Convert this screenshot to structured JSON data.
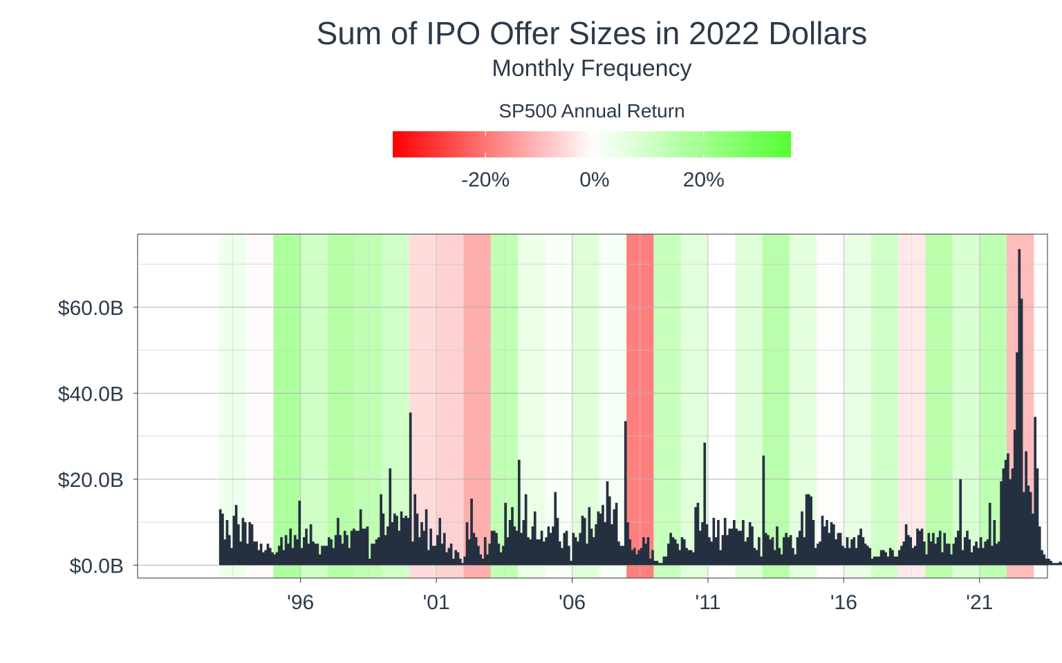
{
  "chart_data": {
    "type": "bar",
    "title": "Sum of IPO Offer Sizes in 2022 Dollars",
    "subtitle": "Monthly Frequency",
    "legend": {
      "title": "SP500 Annual Return",
      "placement": "top-center",
      "range": [
        -37,
        36
      ],
      "ticks": [
        {
          "value": -20,
          "label": "-20%"
        },
        {
          "value": 0,
          "label": "0%"
        },
        {
          "value": 20,
          "label": "20%"
        }
      ],
      "colors": {
        "low": "#ff0000",
        "mid": "#ffffff",
        "high": "#55ff33"
      }
    },
    "y_axis": {
      "ylim": [
        -3,
        77
      ],
      "ticks": [
        {
          "value": 0,
          "label": "$0.0B"
        },
        {
          "value": 20,
          "label": "$20.0B"
        },
        {
          "value": 40,
          "label": "$40.0B"
        },
        {
          "value": 60,
          "label": "$60.0B"
        }
      ],
      "minor_ticks": [
        10,
        30,
        50,
        70
      ]
    },
    "x_axis": {
      "xlim": [
        1990.0,
        2023.5
      ],
      "ticks": [
        {
          "value": 1996,
          "label": "'96"
        },
        {
          "value": 2001,
          "label": "'01"
        },
        {
          "value": 2006,
          "label": "'06"
        },
        {
          "value": 2011,
          "label": "'11"
        },
        {
          "value": 2016,
          "label": "'16"
        },
        {
          "value": 2021,
          "label": "'21"
        }
      ],
      "minor_ticks": [
        1993.5,
        1998.5,
        2003.5,
        2008.5,
        2013.5,
        2018.5
      ]
    },
    "grid": true,
    "annual_returns": [
      {
        "year": 1993,
        "return": 7.1
      },
      {
        "year": 1994,
        "return": -1.5
      },
      {
        "year": 1995,
        "return": 34.1
      },
      {
        "year": 1996,
        "return": 20.3
      },
      {
        "year": 1997,
        "return": 31.0
      },
      {
        "year": 1998,
        "return": 26.7
      },
      {
        "year": 1999,
        "return": 19.5
      },
      {
        "year": 2000,
        "return": -10.1
      },
      {
        "year": 2001,
        "return": -13.0
      },
      {
        "year": 2002,
        "return": -23.4
      },
      {
        "year": 2003,
        "return": 26.4
      },
      {
        "year": 2004,
        "return": 9.0
      },
      {
        "year": 2005,
        "return": 3.0
      },
      {
        "year": 2006,
        "return": 13.6
      },
      {
        "year": 2007,
        "return": 3.5
      },
      {
        "year": 2008,
        "return": -38.5
      },
      {
        "year": 2009,
        "return": 23.5
      },
      {
        "year": 2010,
        "return": 12.8
      },
      {
        "year": 2011,
        "return": 0.0
      },
      {
        "year": 2012,
        "return": 13.4
      },
      {
        "year": 2013,
        "return": 29.6
      },
      {
        "year": 2014,
        "return": 11.4
      },
      {
        "year": 2015,
        "return": -0.7
      },
      {
        "year": 2016,
        "return": 9.5
      },
      {
        "year": 2017,
        "return": 19.4
      },
      {
        "year": 2018,
        "return": -6.2
      },
      {
        "year": 2019,
        "return": 28.9
      },
      {
        "year": 2020,
        "return": 16.3
      },
      {
        "year": 2021,
        "return": 26.9
      },
      {
        "year": 2022,
        "return": -19.4
      }
    ],
    "bar_color": "#24303f",
    "series": [
      {
        "start_month": "1993-01",
        "values": [
          13.0,
          12.0,
          6.0,
          10.5,
          7.0,
          4.0,
          11.5,
          14.0,
          9.5,
          5.5,
          11.0,
          10.0,
          5.0,
          10.0,
          9.5,
          5.5,
          5.5,
          3.5,
          5.0,
          3.0,
          3.5,
          5.0,
          4.0,
          3.0,
          2.5,
          3.0,
          4.5,
          6.5,
          3.5,
          7.0,
          5.0,
          8.5,
          4.0,
          7.0,
          6.0,
          15.0,
          4.0,
          6.5,
          8.5,
          5.0,
          9.5,
          5.5,
          5.0,
          5.0,
          2.5,
          4.5,
          4.5,
          4.5,
          6.5,
          6.0,
          4.0,
          7.0,
          11.0,
          7.0,
          5.0,
          8.0,
          7.0,
          4.0,
          8.0,
          8.5,
          8.0,
          8.0,
          13.0,
          8.5,
          8.5,
          9.0,
          1.5,
          5.0,
          5.0,
          6.0,
          6.5,
          16.5,
          12.0,
          7.0,
          9.0,
          22.5,
          10.0,
          12.0,
          11.5,
          8.0,
          12.5,
          11.0,
          11.5,
          11.0,
          35.5,
          5.5,
          16.5,
          12.0,
          6.5,
          10.0,
          8.0,
          13.0,
          3.5,
          8.5,
          4.5,
          4.5,
          7.0,
          11.0,
          5.0,
          7.5,
          3.0,
          4.0,
          5.0,
          1.5,
          3.5,
          3.0,
          1.5,
          0.5,
          2.0,
          10.0,
          6.0,
          15.5,
          7.5,
          6.5,
          4.5,
          2.5,
          1.5,
          6.5,
          2.5,
          5.0,
          8.0,
          8.0,
          7.5,
          5.0,
          3.0,
          4.5,
          14.5,
          6.5,
          10.5,
          13.5,
          9.0,
          8.0,
          24.5,
          7.5,
          10.5,
          16.5,
          6.5,
          6.0,
          9.0,
          12.5,
          6.0,
          6.0,
          8.0,
          5.5,
          6.5,
          9.0,
          7.5,
          9.0,
          17.0,
          11.0,
          5.5,
          4.0,
          7.5,
          8.0,
          4.5,
          1.0,
          7.5,
          6.5,
          5.5,
          7.5,
          11.5,
          11.0,
          5.0,
          13.5,
          8.5,
          6.5,
          9.5,
          12.5,
          12.0,
          14.0,
          10.0,
          19.5,
          16.0,
          9.5,
          13.0,
          14.5,
          5.5,
          4.5,
          4.5,
          33.5,
          10.0,
          6.0,
          3.5,
          4.0,
          2.5,
          3.5,
          4.0,
          6.5,
          5.0,
          6.5,
          1.5,
          3.5,
          1.0,
          1.0,
          0.5,
          0.5,
          2.0,
          2.0,
          5.0,
          7.5,
          6.5,
          6.0,
          5.0,
          3.5,
          6.5,
          6.0,
          4.0,
          3.5,
          3.5,
          3.0,
          13.5,
          14.5,
          8.0,
          10.0,
          28.5,
          9.5,
          6.5,
          5.5,
          11.0,
          6.5,
          10.5,
          3.5,
          7.0,
          11.0,
          7.0,
          8.5,
          8.5,
          10.5,
          8.5,
          8.0,
          8.0,
          10.5,
          5.5,
          6.5,
          10.0,
          9.0,
          4.0,
          3.5,
          6.5,
          2.0,
          25.5,
          7.5,
          7.0,
          6.0,
          6.5,
          3.5,
          9.0,
          4.0,
          2.5,
          6.5,
          7.5,
          6.5,
          7.0,
          4.0,
          2.5,
          6.5,
          8.0,
          12.5,
          6.5,
          16.5,
          16.5,
          16.0,
          10.5,
          4.0,
          5.0,
          5.5,
          11.5,
          9.0,
          10.5,
          7.5,
          10.0,
          9.5,
          6.0,
          7.5,
          7.5,
          4.5,
          4.0,
          6.5,
          4.0,
          6.0,
          6.5,
          4.0,
          7.0,
          8.5,
          6.5,
          5.0,
          4.5,
          4.0,
          1.5,
          2.0,
          2.0,
          2.0,
          3.5,
          3.5,
          3.0,
          2.0,
          4.0,
          3.5,
          2.0,
          2.0,
          3.5,
          4.5,
          5.5,
          9.5,
          7.0,
          6.5,
          4.0,
          4.5,
          8.5,
          8.0,
          8.5,
          5.5,
          2.5,
          7.5,
          5.5,
          7.5,
          5.0,
          6.5,
          8.0,
          3.0,
          7.5,
          5.0,
          5.0,
          2.5,
          5.0,
          6.5,
          8.0,
          20.0,
          3.5,
          6.5,
          8.0,
          6.0,
          3.0,
          4.5,
          5.5,
          4.0,
          6.5,
          4.0,
          5.5,
          6.0,
          14.5,
          4.5,
          10.5,
          5.0,
          5.5,
          19.5,
          22.5,
          24.5,
          26.0,
          20.0,
          22.5,
          31.5,
          49.5,
          73.5,
          62.0,
          17.0,
          26.5,
          18.5,
          17.0,
          12.0,
          34.5,
          22.5,
          9.0,
          3.5,
          2.5,
          1.5,
          1.5,
          1.0,
          0.5,
          0.5,
          0.5,
          0.8,
          0.5,
          0.5,
          1.5
        ]
      }
    ]
  }
}
